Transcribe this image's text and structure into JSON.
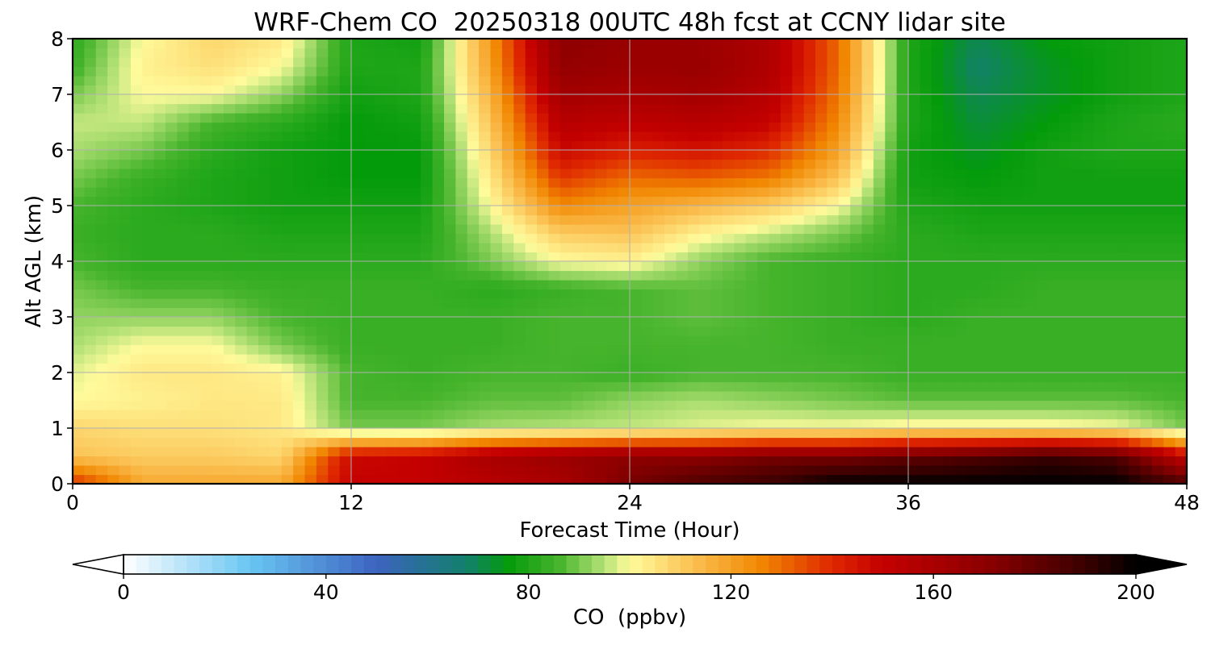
{
  "chart_data": {
    "type": "heatmap",
    "title": "WRF-Chem CO  20250318 00UTC 48h fcst at CCNY lidar site",
    "xlabel": "Forecast Time (Hour)",
    "ylabel": "Alt AGL (km)",
    "xlim": [
      0,
      48
    ],
    "ylim": [
      0,
      8
    ],
    "x_ticks": [
      0,
      12,
      24,
      36,
      48
    ],
    "y_ticks": [
      0,
      1,
      2,
      3,
      4,
      5,
      6,
      7,
      8
    ],
    "grid": true,
    "x": [
      0,
      3,
      6,
      9,
      12,
      15,
      18,
      21,
      24,
      27,
      30,
      33,
      36,
      39,
      42,
      45,
      48
    ],
    "y": [
      0,
      0.5,
      1,
      1.5,
      2,
      2.5,
      3,
      3.5,
      4,
      4.5,
      5,
      5.5,
      6,
      6.5,
      7,
      7.5,
      8
    ],
    "z": [
      [
        140,
        118,
        118,
        118,
        150,
        150,
        155,
        160,
        175,
        185,
        190,
        200,
        200,
        200,
        200,
        200,
        185
      ],
      [
        112,
        110,
        110,
        108,
        148,
        150,
        160,
        165,
        170,
        170,
        175,
        175,
        180,
        185,
        190,
        185,
        150
      ],
      [
        108,
        106,
        106,
        104,
        90,
        90,
        94,
        95,
        96,
        98,
        100,
        100,
        102,
        102,
        102,
        100,
        90
      ],
      [
        100,
        102,
        104,
        104,
        86,
        86,
        88,
        88,
        92,
        94,
        92,
        90,
        88,
        88,
        88,
        88,
        86
      ],
      [
        98,
        104,
        104,
        102,
        86,
        84,
        86,
        86,
        84,
        86,
        86,
        86,
        84,
        84,
        84,
        84,
        84
      ],
      [
        94,
        100,
        100,
        90,
        84,
        84,
        84,
        86,
        86,
        86,
        86,
        84,
        84,
        84,
        84,
        84,
        84
      ],
      [
        92,
        92,
        92,
        86,
        84,
        84,
        84,
        86,
        86,
        88,
        86,
        84,
        82,
        84,
        84,
        84,
        84
      ],
      [
        90,
        86,
        86,
        84,
        84,
        84,
        82,
        84,
        86,
        88,
        86,
        84,
        82,
        82,
        84,
        84,
        84
      ],
      [
        86,
        82,
        82,
        82,
        82,
        82,
        90,
        100,
        102,
        92,
        86,
        84,
        82,
        82,
        82,
        82,
        82
      ],
      [
        84,
        82,
        82,
        80,
        80,
        80,
        94,
        110,
        112,
        102,
        96,
        90,
        82,
        80,
        80,
        80,
        80
      ],
      [
        86,
        82,
        80,
        78,
        78,
        78,
        100,
        125,
        120,
        115,
        110,
        100,
        80,
        78,
        78,
        78,
        78
      ],
      [
        90,
        84,
        80,
        78,
        76,
        76,
        104,
        138,
        130,
        132,
        128,
        112,
        78,
        76,
        78,
        78,
        78
      ],
      [
        94,
        90,
        82,
        78,
        76,
        76,
        108,
        148,
        142,
        145,
        140,
        120,
        78,
        74,
        78,
        80,
        80
      ],
      [
        96,
        96,
        86,
        82,
        76,
        78,
        112,
        155,
        152,
        155,
        150,
        125,
        80,
        72,
        76,
        80,
        82
      ],
      [
        90,
        100,
        100,
        92,
        78,
        80,
        116,
        162,
        160,
        162,
        155,
        128,
        80,
        70,
        74,
        78,
        80
      ],
      [
        84,
        102,
        106,
        100,
        80,
        80,
        120,
        168,
        165,
        166,
        158,
        130,
        80,
        68,
        74,
        78,
        80
      ],
      [
        82,
        100,
        108,
        104,
        80,
        78,
        122,
        170,
        166,
        165,
        158,
        130,
        80,
        70,
        76,
        78,
        80
      ]
    ],
    "colorbar": {
      "label": "CO  (ppbv)",
      "range": [
        0,
        200
      ],
      "ticks": [
        0,
        40,
        80,
        120,
        160,
        200
      ],
      "extend": "both",
      "stops": [
        {
          "v": 0,
          "c": "#ffffff"
        },
        {
          "v": 25,
          "c": "#69c6f2"
        },
        {
          "v": 50,
          "c": "#3d63c0"
        },
        {
          "v": 68,
          "c": "#12806a"
        },
        {
          "v": 76,
          "c": "#049b0b"
        },
        {
          "v": 86,
          "c": "#46b42c"
        },
        {
          "v": 95,
          "c": "#b6e277"
        },
        {
          "v": 100,
          "c": "#fffb9c"
        },
        {
          "v": 112,
          "c": "#fbc355"
        },
        {
          "v": 126,
          "c": "#f18600"
        },
        {
          "v": 140,
          "c": "#df2800"
        },
        {
          "v": 150,
          "c": "#c40000"
        },
        {
          "v": 170,
          "c": "#8e0000"
        },
        {
          "v": 190,
          "c": "#3a0000"
        },
        {
          "v": 200,
          "c": "#000000"
        }
      ]
    }
  }
}
